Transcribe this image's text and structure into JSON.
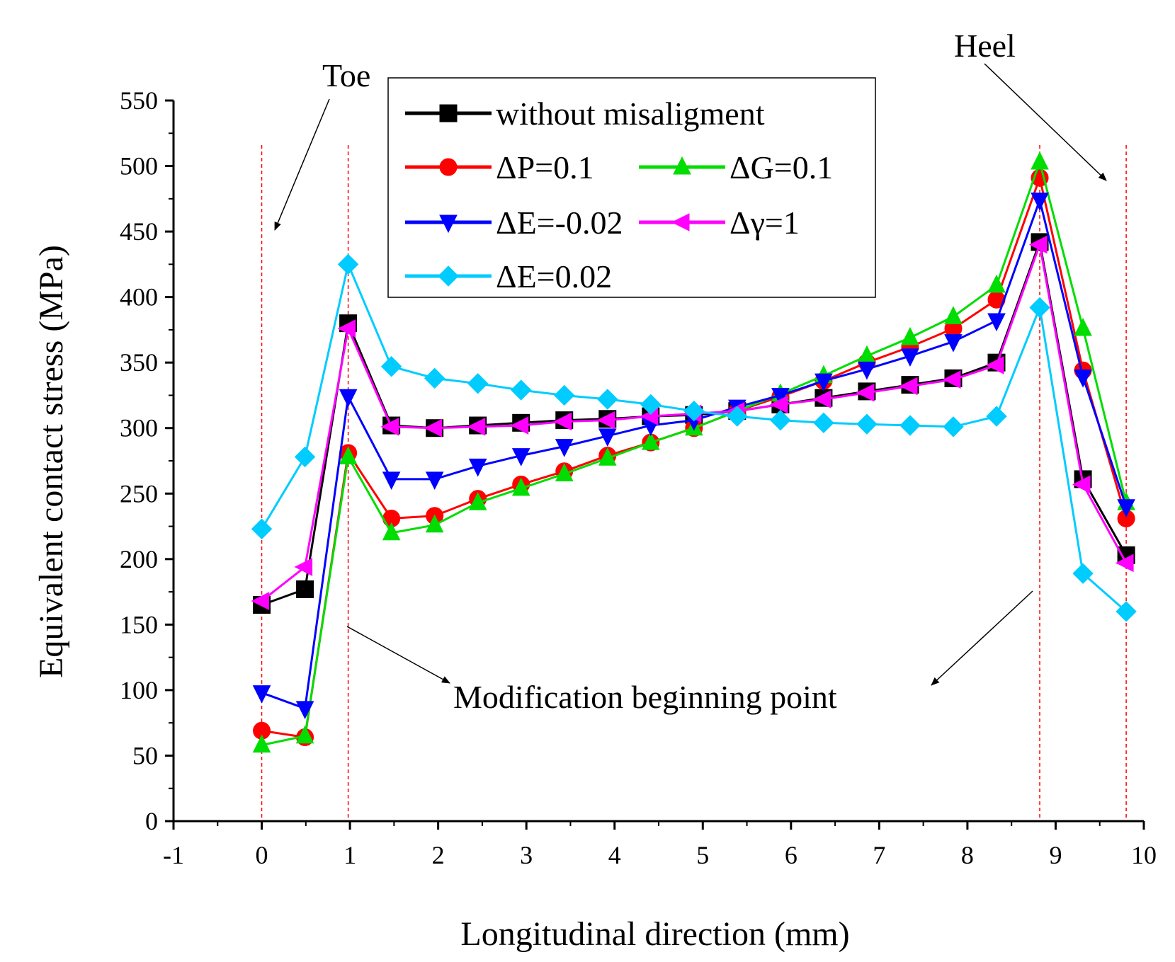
{
  "chart_data": {
    "type": "line",
    "title": "",
    "xlabel": "Longitudinal direction (mm)",
    "ylabel": "Equivalent contact stress (MPa)",
    "xlim": [
      -1,
      10
    ],
    "ylim": [
      0,
      550
    ],
    "xticks": [
      -1,
      0,
      1,
      2,
      3,
      4,
      5,
      6,
      7,
      8,
      9,
      10
    ],
    "yticks": [
      0,
      50,
      100,
      150,
      200,
      250,
      300,
      350,
      400,
      450,
      500,
      550
    ],
    "x": [
      0,
      0.49,
      0.98,
      1.47,
      1.96,
      2.45,
      2.94,
      3.43,
      3.92,
      4.41,
      4.9,
      5.39,
      5.88,
      6.37,
      6.86,
      7.35,
      7.84,
      8.33,
      8.82,
      9.31,
      9.8
    ],
    "series": [
      {
        "name": "without misaligment",
        "color": "#000000",
        "marker": "square",
        "values": [
          165,
          177,
          380,
          302,
          300,
          302,
          304,
          306,
          307,
          309,
          310,
          313,
          318,
          323,
          328,
          333,
          338,
          350,
          442,
          261,
          203
        ]
      },
      {
        "name": "ΔP=0.1",
        "color": "#ff0000",
        "marker": "circle",
        "values": [
          69,
          64,
          281,
          231,
          233,
          246,
          257,
          267,
          279,
          289,
          300,
          313,
          324,
          336,
          350,
          362,
          376,
          398,
          491,
          344,
          231
        ]
      },
      {
        "name": "ΔG=0.1",
        "color": "#00dd00",
        "marker": "triangle-up",
        "values": [
          58,
          65,
          278,
          220,
          226,
          243,
          254,
          265,
          277,
          289,
          300,
          313,
          326,
          340,
          355,
          369,
          385,
          409,
          503,
          376,
          243
        ]
      },
      {
        "name": "ΔE=-0.02",
        "color": "#0000ff",
        "marker": "triangle-down",
        "values": [
          98,
          86,
          324,
          261,
          261,
          271,
          279,
          286,
          294,
          302,
          306,
          316,
          325,
          336,
          345,
          355,
          366,
          382,
          474,
          339,
          240
        ]
      },
      {
        "name": "Δγ=1",
        "color": "#ff00ff",
        "marker": "triangle-left",
        "values": [
          168,
          194,
          376,
          301,
          300,
          301,
          302,
          305,
          306,
          309,
          311,
          313,
          318,
          322,
          327,
          332,
          337,
          348,
          440,
          257,
          197
        ]
      },
      {
        "name": "ΔE=0.02",
        "color": "#00ccff",
        "marker": "diamond",
        "values": [
          223,
          278,
          425,
          347,
          338,
          334,
          329,
          325,
          322,
          318,
          313,
          309,
          306,
          304,
          303,
          302,
          301,
          309,
          392,
          189,
          160
        ]
      }
    ],
    "reference_lines_x": [
      0,
      0.98,
      8.82,
      9.8
    ],
    "annotations": [
      {
        "text": "Toe",
        "points_to_x": 0.15
      },
      {
        "text": "Heel",
        "points_to_x": 9.8
      },
      {
        "text": "Modification beginning point",
        "points_to_x": [
          0.98,
          8.82
        ]
      }
    ],
    "legend": "top-center"
  }
}
